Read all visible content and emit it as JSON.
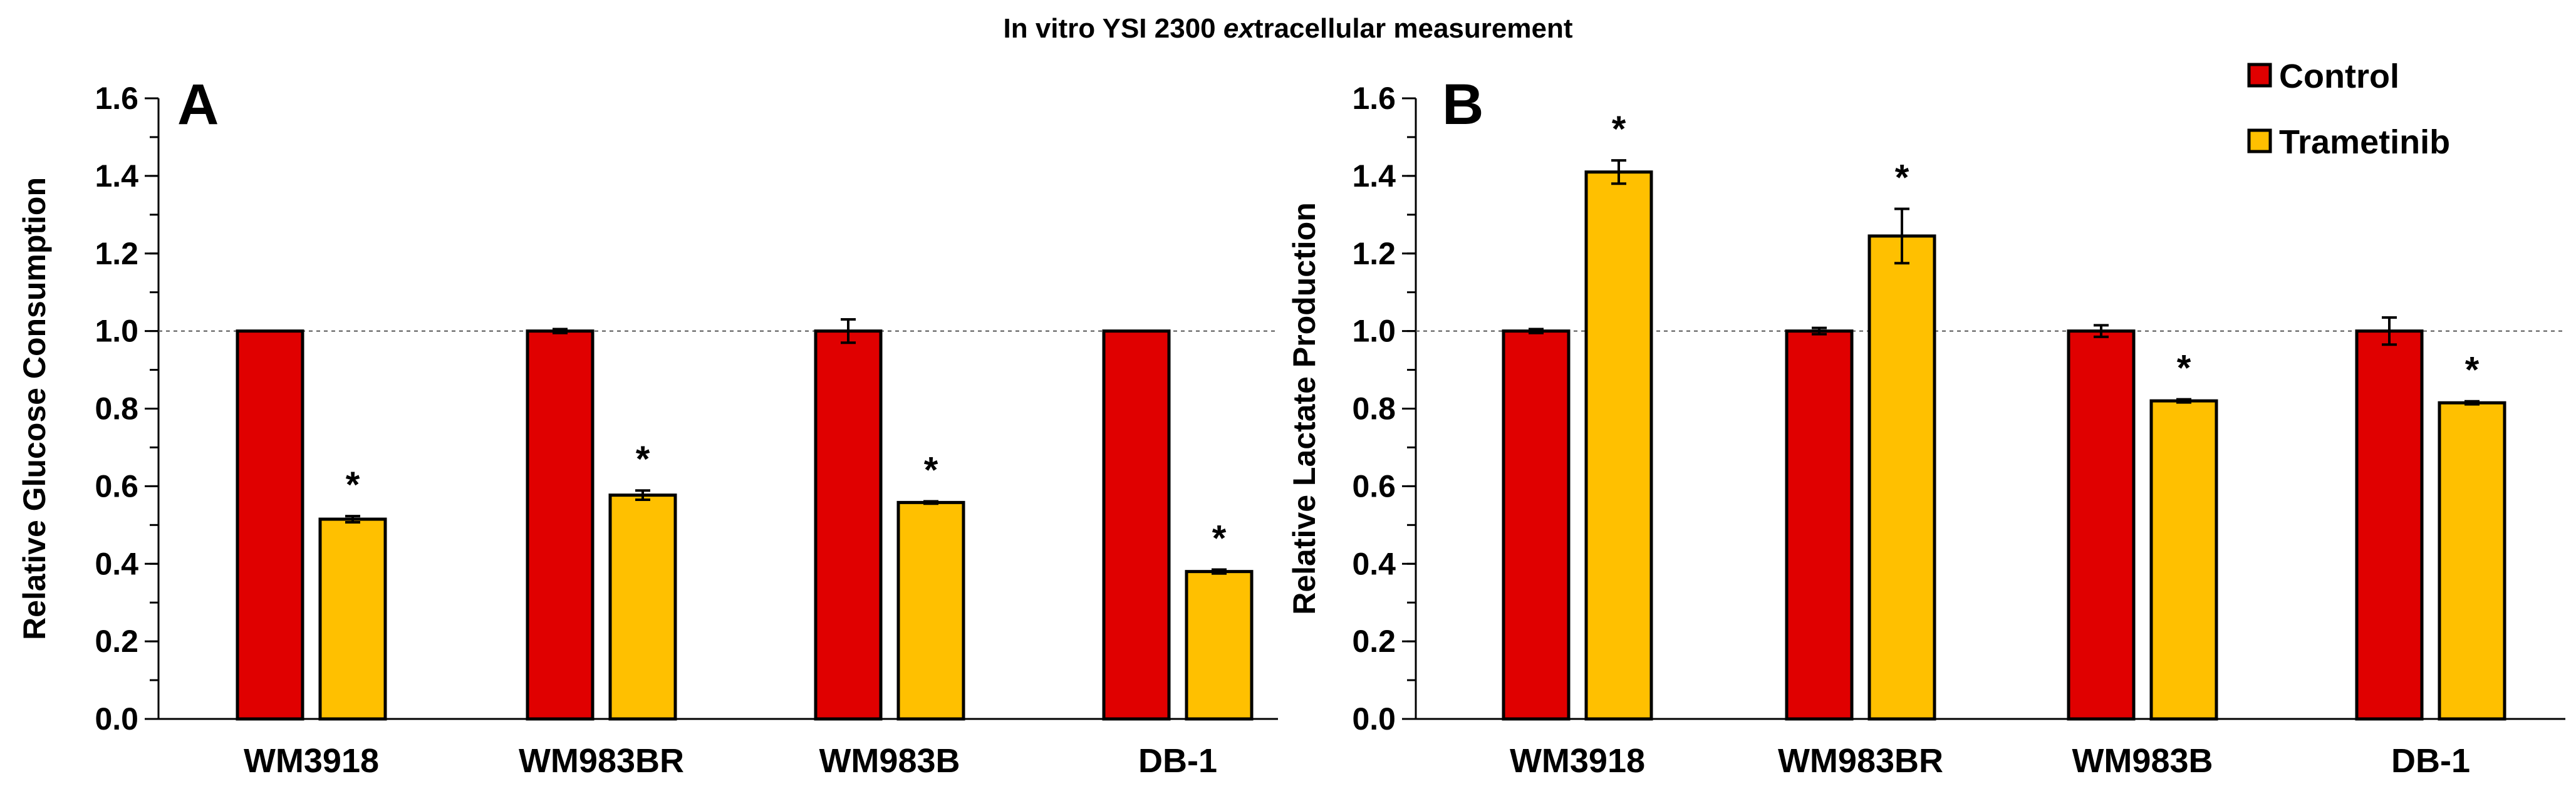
{
  "figure": {
    "title_prefix": "In vitro YSI 2300 ",
    "title_italic": "ex",
    "title_suffix": "tracellular measurement"
  },
  "legend": [
    {
      "name": "Control",
      "color": "#e00000"
    },
    {
      "name": "Trametinib",
      "color": "#ffc000"
    }
  ],
  "chart_data": [
    {
      "type": "bar",
      "panel": "A",
      "ylabel": "Relative Glucose Consumption",
      "ylim": [
        0,
        1.6
      ],
      "yticks": [
        0.0,
        0.2,
        0.4,
        0.6,
        0.8,
        1.0,
        1.2,
        1.4,
        1.6
      ],
      "reference_line": 1.0,
      "categories": [
        "WM3918",
        "WM983BR",
        "WM983B",
        "DB-1"
      ],
      "series": [
        {
          "name": "Control",
          "color": "#e00000",
          "values": [
            1.0,
            1.0,
            1.0,
            1.0
          ],
          "errors": [
            0.0,
            0.005,
            0.03,
            0.0
          ],
          "significance": [
            "",
            "",
            "",
            ""
          ]
        },
        {
          "name": "Trametinib",
          "color": "#ffc000",
          "values": [
            0.515,
            0.577,
            0.558,
            0.38
          ],
          "errors": [
            0.008,
            0.012,
            0.003,
            0.005
          ],
          "significance": [
            "*",
            "*",
            "*",
            "*"
          ]
        }
      ]
    },
    {
      "type": "bar",
      "panel": "B",
      "ylabel": "Relative Lactate Production",
      "ylim": [
        0,
        1.6
      ],
      "yticks": [
        0.0,
        0.2,
        0.4,
        0.6,
        0.8,
        1.0,
        1.2,
        1.4,
        1.6
      ],
      "reference_line": 1.0,
      "categories": [
        "WM3918",
        "WM983BR",
        "WM983B",
        "DB-1"
      ],
      "series": [
        {
          "name": "Control",
          "color": "#e00000",
          "values": [
            1.0,
            1.0,
            1.0,
            1.0
          ],
          "errors": [
            0.005,
            0.008,
            0.015,
            0.035
          ],
          "significance": [
            "",
            "",
            "",
            ""
          ]
        },
        {
          "name": "Trametinib",
          "color": "#ffc000",
          "values": [
            1.41,
            1.245,
            0.82,
            0.815
          ],
          "errors": [
            0.03,
            0.07,
            0.004,
            0.004
          ],
          "significance": [
            "*",
            "*",
            "*",
            "*"
          ]
        }
      ]
    }
  ]
}
